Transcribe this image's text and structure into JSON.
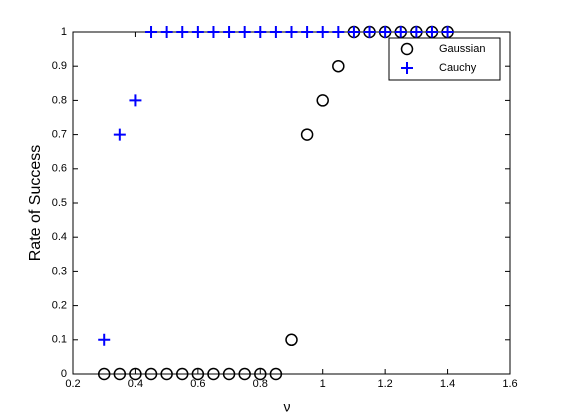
{
  "chart_data": {
    "type": "scatter",
    "xlabel": "ν",
    "ylabel": "Rate of Success",
    "xlim": [
      0.2,
      1.6
    ],
    "ylim": [
      0,
      1
    ],
    "xticks": [
      0.2,
      0.4,
      0.6,
      0.8,
      1,
      1.2,
      1.4,
      1.6
    ],
    "yticks": [
      0,
      0.1,
      0.2,
      0.3,
      0.4,
      0.5,
      0.6,
      0.7,
      0.8,
      0.9,
      1
    ],
    "legend": "northeast",
    "series": [
      {
        "name": "Gaussian",
        "color": "#000000",
        "marker": "o",
        "x": [
          0.3,
          0.35,
          0.4,
          0.45,
          0.5,
          0.55,
          0.6,
          0.65,
          0.7,
          0.75,
          0.8,
          0.85,
          0.9,
          0.95,
          1,
          1.05,
          1.1,
          1.15,
          1.2,
          1.25,
          1.3,
          1.35,
          1.4
        ],
        "values": [
          0,
          0,
          0,
          0,
          0,
          0,
          0,
          0,
          0,
          0,
          0,
          0,
          0.1,
          0.7,
          0.8,
          0.9,
          1,
          1,
          1,
          1,
          1,
          1,
          1
        ]
      },
      {
        "name": "Cauchy",
        "color": "#0000ff",
        "marker": "+",
        "x": [
          0.3,
          0.35,
          0.4,
          0.45,
          0.5,
          0.55,
          0.6,
          0.65,
          0.7,
          0.75,
          0.8,
          0.85,
          0.9,
          0.95,
          1,
          1.05,
          1.1,
          1.15,
          1.2,
          1.25,
          1.3,
          1.35,
          1.4
        ],
        "values": [
          0.1,
          0.7,
          0.8,
          1,
          1,
          1,
          1,
          1,
          1,
          1,
          1,
          1,
          1,
          1,
          1,
          1,
          1,
          1,
          1,
          1,
          1,
          1,
          1
        ]
      }
    ]
  }
}
